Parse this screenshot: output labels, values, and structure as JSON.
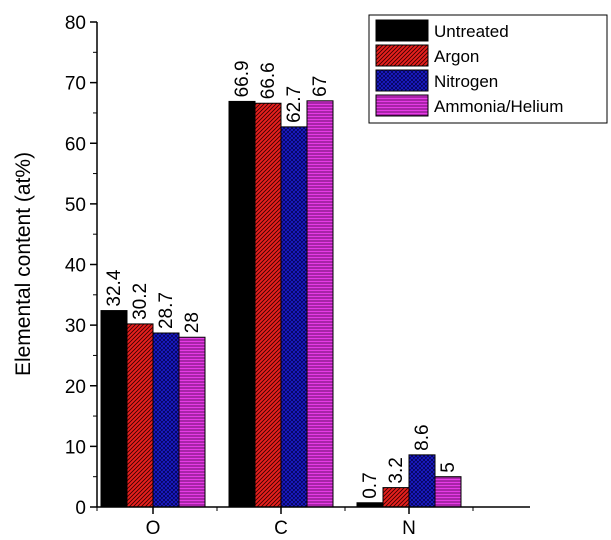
{
  "chart_data": {
    "type": "bar",
    "categories": [
      "O",
      "C",
      "N"
    ],
    "series": [
      {
        "name": "Untreated",
        "values": [
          32.4,
          66.9,
          0.7
        ],
        "labels": [
          "32.4",
          "66.9",
          "0.7"
        ],
        "color": "#000000",
        "pattern": "solid"
      },
      {
        "name": "Argon",
        "values": [
          30.2,
          66.6,
          3.2
        ],
        "labels": [
          "30.2",
          "66.6",
          "3.2"
        ],
        "color": "#e8201e",
        "pattern": "diagonal"
      },
      {
        "name": "Nitrogen",
        "values": [
          28.7,
          62.7,
          8.6
        ],
        "labels": [
          "28.7",
          "62.7",
          "8.6"
        ],
        "color": "#1c1ccc",
        "pattern": "crosshatch"
      },
      {
        "name": "Ammonia/Helium",
        "values": [
          28,
          67,
          5
        ],
        "labels": [
          "28",
          "67",
          "5"
        ],
        "color": "#e63be6",
        "pattern": "horizontal"
      }
    ],
    "ylabel": "Elemental content (at%)",
    "xlabel": "",
    "ylim": [
      0,
      80
    ],
    "yticks": [
      "0",
      "10",
      "20",
      "30",
      "40",
      "50",
      "60",
      "70",
      "80"
    ],
    "grid": false,
    "legend_position": "top-right"
  }
}
